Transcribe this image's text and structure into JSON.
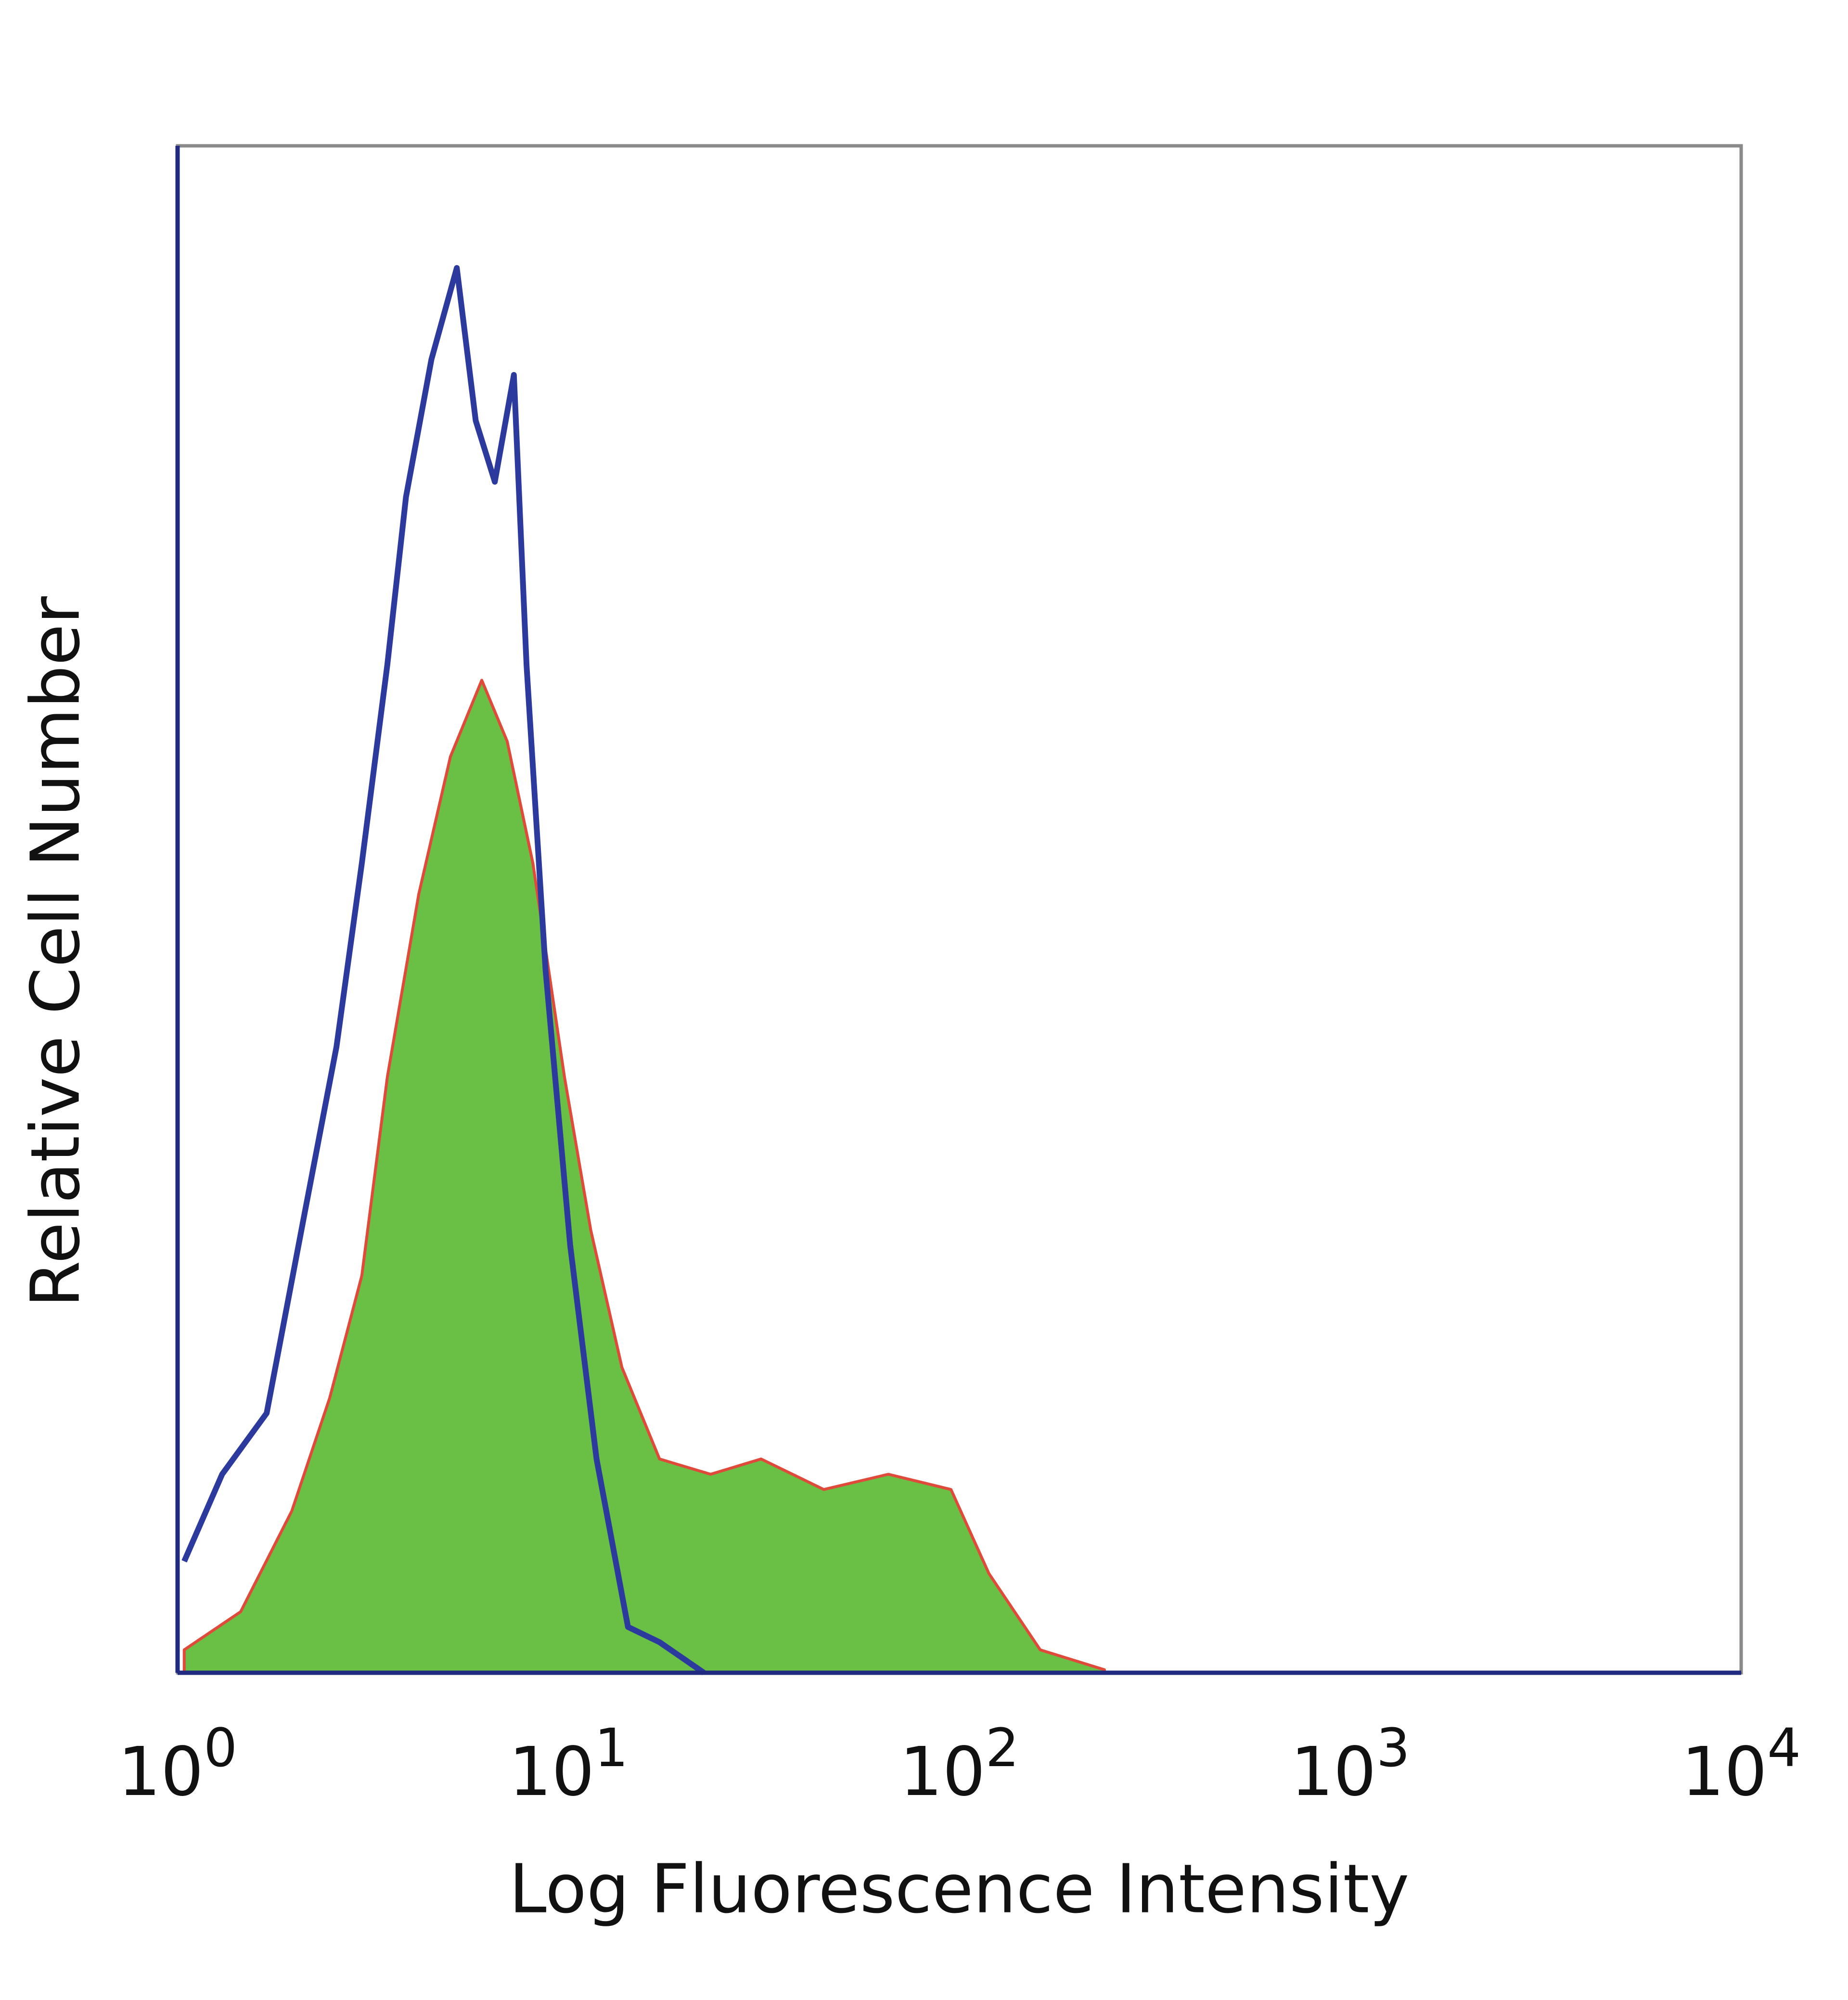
{
  "chart_data": {
    "type": "histogram-overlay",
    "xlabel": "Log Fluorescence Intensity",
    "ylabel": "Relative Cell Number",
    "xscale": "log",
    "xlim": [
      1,
      10000
    ],
    "ylim": [
      0,
      100
    ],
    "xticks": [
      {
        "value": 1,
        "label": "10",
        "exponent": "0"
      },
      {
        "value": 10,
        "label": "10",
        "exponent": "1"
      },
      {
        "value": 100,
        "label": "10",
        "exponent": "2"
      },
      {
        "value": 1000,
        "label": "10",
        "exponent": "3"
      },
      {
        "value": 10000,
        "label": "10",
        "exponent": "4"
      }
    ],
    "series": [
      {
        "color": "#6abf45",
        "edge_color": "#e04a3a",
        "filled": true,
        "x": [
          1.04,
          1.45,
          1.96,
          2.45,
          2.96,
          3.44,
          4.14,
          4.99,
          6.0,
          6.97,
          8.11,
          9.77,
          11.4,
          13.7,
          17.1,
          23.1,
          31.1,
          45,
          65.8,
          95.2,
          119,
          161,
          235
        ],
        "values": [
          1.5,
          4,
          10.6,
          18,
          26,
          39,
          51,
          60,
          65,
          61,
          53,
          39,
          29,
          20,
          14,
          13,
          14,
          12,
          13,
          12,
          6.5,
          1.5,
          0.2
        ]
      },
      {
        "color": "#2b3a9c",
        "filled": false,
        "x": [
          1.04,
          1.3,
          1.69,
          2.11,
          2.55,
          2.96,
          3.44,
          3.84,
          4.46,
          5.18,
          5.79,
          6.48,
          7.25,
          7.81,
          8.74,
          10.1,
          11.8,
          14.2,
          17.1,
          22.2
        ],
        "values": [
          7.3,
          13,
          17,
          30,
          41,
          53,
          66,
          77,
          86,
          92,
          82,
          78,
          85,
          66,
          46,
          28,
          14,
          3,
          2,
          0
        ]
      }
    ]
  }
}
